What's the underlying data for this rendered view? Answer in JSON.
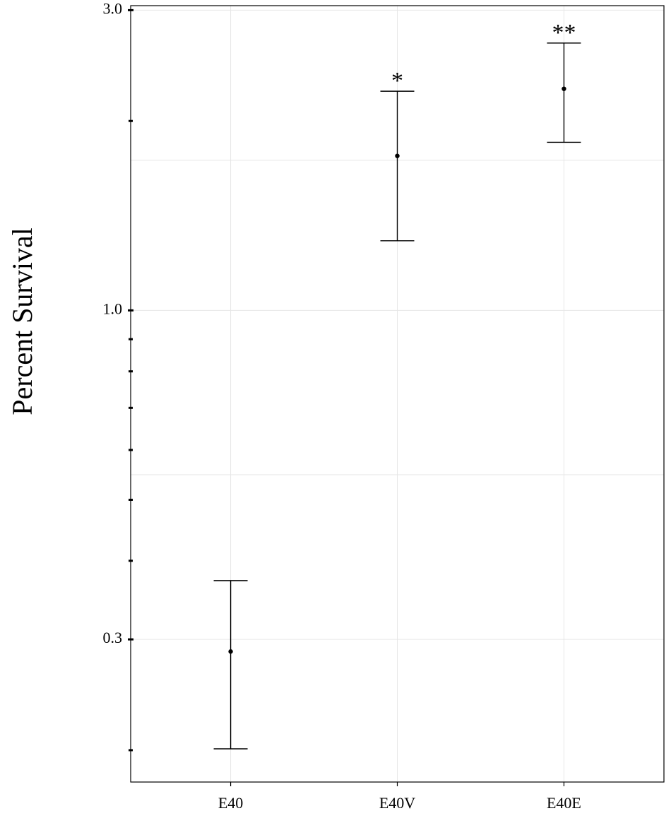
{
  "chart_data": {
    "type": "errorbar",
    "y_label": "Percent Survival",
    "categories": [
      "E40",
      "E40V",
      "E40E"
    ],
    "values": [
      0.287,
      1.76,
      2.25
    ],
    "error_low": [
      0.201,
      1.29,
      1.85
    ],
    "error_high": [
      0.372,
      2.23,
      2.66
    ],
    "annotations": [
      null,
      "*",
      "**"
    ],
    "color": "#000000",
    "ylim": [
      0.178,
      3.05
    ],
    "log_y": true,
    "yticks": [
      0.3,
      {
        "value": 1,
        "label": "1.0"
      },
      {
        "value": 3,
        "label": "3.0"
      }
    ],
    "minor_yticks": [
      0.2,
      0.4,
      0.5,
      0.6,
      0.7,
      0.8,
      0.9,
      2
    ],
    "minor_grid": [
      0.548,
      1.732
    ],
    "grid": true
  }
}
